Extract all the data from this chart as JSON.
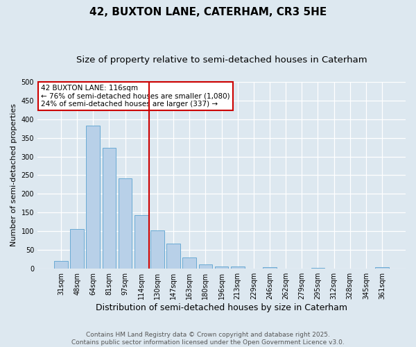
{
  "title": "42, BUXTON LANE, CATERHAM, CR3 5HE",
  "subtitle": "Size of property relative to semi-detached houses in Caterham",
  "xlabel": "Distribution of semi-detached houses by size in Caterham",
  "ylabel": "Number of semi-detached properties",
  "categories": [
    "31sqm",
    "48sqm",
    "64sqm",
    "81sqm",
    "97sqm",
    "114sqm",
    "130sqm",
    "147sqm",
    "163sqm",
    "180sqm",
    "196sqm",
    "213sqm",
    "229sqm",
    "246sqm",
    "262sqm",
    "279sqm",
    "295sqm",
    "312sqm",
    "328sqm",
    "345sqm",
    "361sqm"
  ],
  "values": [
    20,
    107,
    383,
    323,
    242,
    144,
    102,
    68,
    30,
    11,
    6,
    6,
    0,
    4,
    0,
    0,
    3,
    0,
    0,
    0,
    4
  ],
  "bar_color": "#b8d0e8",
  "bar_edge_color": "#6aaad4",
  "vline_x_index": 5,
  "vline_color": "#cc0000",
  "annotation_line1": "42 BUXTON LANE: 116sqm",
  "annotation_line2": "← 76% of semi-detached houses are smaller (1,080)",
  "annotation_line3": "24% of semi-detached houses are larger (337) →",
  "annotation_box_color": "#ffffff",
  "annotation_box_edge": "#cc0000",
  "ylim": [
    0,
    500
  ],
  "yticks": [
    0,
    50,
    100,
    150,
    200,
    250,
    300,
    350,
    400,
    450,
    500
  ],
  "bg_color": "#dde8f0",
  "plot_bg_color": "#dde8f0",
  "footer_line1": "Contains HM Land Registry data © Crown copyright and database right 2025.",
  "footer_line2": "Contains public sector information licensed under the Open Government Licence v3.0.",
  "title_fontsize": 11,
  "subtitle_fontsize": 9.5,
  "xlabel_fontsize": 9,
  "ylabel_fontsize": 8,
  "tick_fontsize": 7,
  "annot_fontsize": 7.5,
  "footer_fontsize": 6.5
}
